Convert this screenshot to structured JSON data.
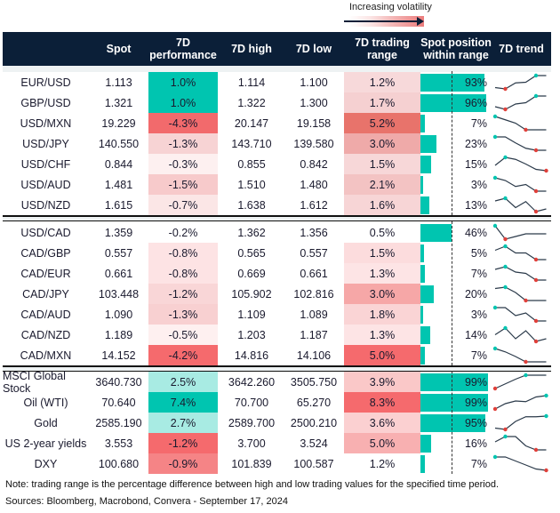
{
  "legend": {
    "label": "Increasing volatility"
  },
  "headers": [
    "",
    "Spot",
    "7D performance",
    "7D high",
    "7D low",
    "7D trading range",
    "Spot position within range",
    "7D trend"
  ],
  "colors": {
    "header_bg": "#0b1f38",
    "bar": "#00c5b0",
    "max_marker": "#00c5b0",
    "min_marker": "#e0403a"
  },
  "sections": [
    {
      "rows": [
        {
          "name": "EUR/USD",
          "spot": "1.113",
          "perf": "1.0%",
          "perf_color": "#00c5b0",
          "high": "1.114",
          "low": "1.100",
          "range": "1.2%",
          "range_color": "#f7d9da",
          "pos": 93,
          "pos_label": "93%",
          "trend": [
            0.1,
            0,
            0.45,
            0.5,
            1,
            1
          ]
        },
        {
          "name": "GBP/USD",
          "spot": "1.321",
          "perf": "1.0%",
          "perf_color": "#00c5b0",
          "high": "1.322",
          "low": "1.300",
          "range": "1.7%",
          "range_color": "#f5d0d1",
          "pos": 96,
          "pos_label": "96%",
          "trend": [
            0.2,
            0,
            0.4,
            0.5,
            1,
            1
          ]
        },
        {
          "name": "USD/MXN",
          "spot": "19.229",
          "perf": "-4.3%",
          "perf_color": "#f26a6c",
          "high": "20.147",
          "low": "19.158",
          "range": "5.2%",
          "range_color": "#e8736b",
          "pos": 7,
          "pos_label": "7%",
          "trend": [
            1,
            0.75,
            0.5,
            0,
            0,
            0
          ]
        },
        {
          "name": "USD/JPY",
          "spot": "140.550",
          "perf": "-1.3%",
          "perf_color": "#f7d3d4",
          "high": "143.710",
          "low": "139.580",
          "range": "3.0%",
          "range_color": "#efaaa9",
          "pos": 23,
          "pos_label": "23%",
          "trend": [
            1,
            1,
            0.55,
            0.15,
            0,
            0
          ]
        },
        {
          "name": "USD/CHF",
          "spot": "0.844",
          "perf": "-0.3%",
          "perf_color": "#fdf0f0",
          "high": "0.855",
          "low": "0.842",
          "range": "1.5%",
          "range_color": "#f7d7d8",
          "pos": 15,
          "pos_label": "15%",
          "trend": [
            0.4,
            1,
            0.85,
            0.5,
            0.1,
            0
          ]
        },
        {
          "name": "USD/AUD",
          "spot": "1.481",
          "perf": "-1.5%",
          "perf_color": "#f7cacb",
          "high": "1.510",
          "low": "1.480",
          "range": "2.1%",
          "range_color": "#f3c3c3",
          "pos": 3,
          "pos_label": "3%",
          "trend": [
            1,
            0.8,
            0.35,
            0.5,
            0,
            0
          ]
        },
        {
          "name": "USD/NZD",
          "spot": "1.615",
          "perf": "-0.7%",
          "perf_color": "#fbe6e6",
          "high": "1.638",
          "low": "1.612",
          "range": "1.6%",
          "range_color": "#f7d5d6",
          "pos": 13,
          "pos_label": "13%",
          "trend": [
            0.8,
            1,
            0.3,
            0.75,
            0,
            0.2
          ]
        }
      ]
    },
    {
      "rows": [
        {
          "name": "USD/CAD",
          "spot": "1.359",
          "perf": "-0.2%",
          "perf_color": "#ffffff",
          "high": "1.362",
          "low": "1.356",
          "range": "0.5%",
          "range_color": "#ffffff",
          "pos": 46,
          "pos_label": "46%",
          "trend": [
            1,
            0,
            0.2,
            0.4,
            0.4,
            0.4
          ]
        },
        {
          "name": "CAD/GBP",
          "spot": "0.557",
          "perf": "-0.8%",
          "perf_color": "#fde3e4",
          "high": "0.565",
          "low": "0.557",
          "range": "1.5%",
          "range_color": "#fcdcdd",
          "pos": 5,
          "pos_label": "5%",
          "trend": [
            0.7,
            1,
            0.5,
            0.5,
            0,
            0
          ]
        },
        {
          "name": "CAD/EUR",
          "spot": "0.661",
          "perf": "-0.8%",
          "perf_color": "#fde3e4",
          "high": "0.669",
          "low": "0.661",
          "range": "1.3%",
          "range_color": "#fde4e5",
          "pos": 7,
          "pos_label": "7%",
          "trend": [
            0.8,
            1,
            0.6,
            0.5,
            0,
            0
          ]
        },
        {
          "name": "CAD/JPY",
          "spot": "103.448",
          "perf": "-1.2%",
          "perf_color": "#f9d6d7",
          "high": "105.902",
          "low": "102.816",
          "range": "3.0%",
          "range_color": "#f6a7a7",
          "pos": 20,
          "pos_label": "20%",
          "trend": [
            0.9,
            1,
            0.6,
            0,
            0,
            0
          ]
        },
        {
          "name": "CAD/AUD",
          "spot": "1.090",
          "perf": "-1.3%",
          "perf_color": "#f8d0d1",
          "high": "1.109",
          "low": "1.089",
          "range": "1.8%",
          "range_color": "#fad4d5",
          "pos": 3,
          "pos_label": "3%",
          "trend": [
            1,
            1,
            0.4,
            0.6,
            0,
            0
          ]
        },
        {
          "name": "CAD/NZD",
          "spot": "1.189",
          "perf": "-0.5%",
          "perf_color": "#fef0f0",
          "high": "1.203",
          "low": "1.187",
          "range": "1.3%",
          "range_color": "#fde4e5",
          "pos": 14,
          "pos_label": "14%",
          "trend": [
            0.5,
            1,
            0.2,
            0.8,
            0,
            0.2
          ]
        },
        {
          "name": "CAD/MXN",
          "spot": "14.152",
          "perf": "-4.2%",
          "perf_color": "#f56a6d",
          "high": "14.816",
          "low": "14.106",
          "range": "5.0%",
          "range_color": "#f56a6d",
          "pos": 7,
          "pos_label": "7%",
          "trend": [
            1,
            0.75,
            0.4,
            0,
            0,
            0
          ]
        }
      ]
    },
    {
      "rows": [
        {
          "name": "MSCI Global Stock",
          "spot": "3640.730",
          "perf": "2.5%",
          "perf_color": "#a8ebe3",
          "high": "3642.260",
          "low": "3505.750",
          "range": "3.9%",
          "range_color": "#fac8c8",
          "pos": 99,
          "pos_label": "99%",
          "trend": [
            0,
            0.35,
            0.7,
            1,
            1,
            1
          ]
        },
        {
          "name": "Oil (WTI)",
          "spot": "70.640",
          "perf": "7.4%",
          "perf_color": "#00c5b0",
          "high": "70.700",
          "low": "65.270",
          "range": "8.3%",
          "range_color": "#f56a6d",
          "pos": 99,
          "pos_label": "99%",
          "trend": [
            0,
            0.4,
            0.6,
            0.55,
            0.9,
            1
          ]
        },
        {
          "name": "Gold",
          "spot": "2585.190",
          "perf": "2.7%",
          "perf_color": "#a8ebe3",
          "high": "2589.700",
          "low": "2500.210",
          "range": "3.6%",
          "range_color": "#fbd0d1",
          "pos": 95,
          "pos_label": "95%",
          "trend": [
            0.1,
            0,
            0.6,
            0.95,
            0.95,
            1
          ]
        },
        {
          "name": "US 2-year yields",
          "spot": "3.553",
          "perf": "-1.2%",
          "perf_color": "#f56a6d",
          "high": "3.700",
          "low": "3.524",
          "range": "5.0%",
          "range_color": "#f8b0b1",
          "pos": 16,
          "pos_label": "16%",
          "trend": [
            0.6,
            1,
            1,
            0.3,
            0,
            0
          ]
        },
        {
          "name": "DXY",
          "spot": "100.680",
          "perf": "-0.9%",
          "perf_color": "#f58486",
          "high": "101.839",
          "low": "100.587",
          "range": "1.2%",
          "range_color": "#ffffff",
          "pos": 7,
          "pos_label": "7%",
          "trend": [
            1,
            1,
            0.7,
            0.4,
            0.1,
            0
          ]
        }
      ]
    }
  ],
  "note": "Note: trading range is the percentage difference between high and low trading values for the specified time period.",
  "sources": "Sources: Bloomberg, Macrobond, Convera - September 17, 2024"
}
